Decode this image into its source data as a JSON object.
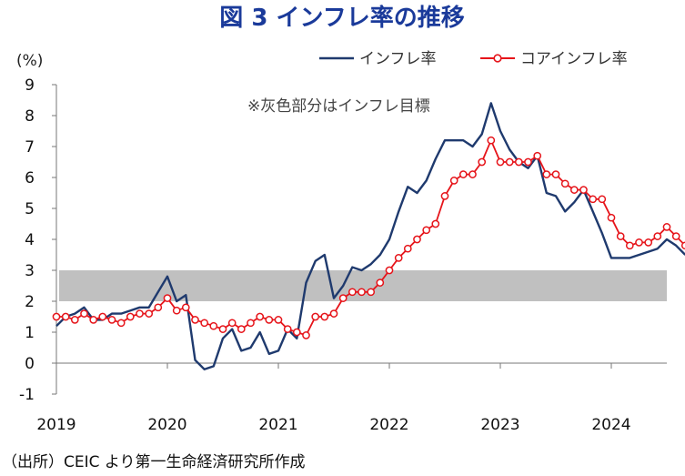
{
  "chart_data": {
    "type": "line",
    "title": "図 3 インフレ率の推移",
    "ylabel": "(%)",
    "ylim": [
      -1,
      9
    ],
    "yticks": [
      9,
      8,
      7,
      6,
      5,
      4,
      3,
      2,
      1,
      0,
      -1
    ],
    "xtick_labels": [
      "2019",
      "2020",
      "2021",
      "2022",
      "2023",
      "2024"
    ],
    "target_band": {
      "low": 2,
      "high": 3,
      "label": "※灰色部分はインフレ目標",
      "color": "#c0c0c0"
    },
    "x_start": "2019-01",
    "series": [
      {
        "name": "インフレ率",
        "color": "#1f3a6e",
        "marker": "none",
        "values": [
          1.2,
          1.5,
          1.6,
          1.8,
          1.4,
          1.4,
          1.6,
          1.6,
          1.7,
          1.8,
          1.8,
          2.3,
          2.8,
          2.0,
          2.2,
          0.1,
          -0.2,
          -0.1,
          0.8,
          1.1,
          0.4,
          0.5,
          1.0,
          0.3,
          0.4,
          1.1,
          0.8,
          2.6,
          3.3,
          3.5,
          2.1,
          2.5,
          3.1,
          3.0,
          3.2,
          3.5,
          4.0,
          4.9,
          5.7,
          5.5,
          5.9,
          6.6,
          7.2,
          7.2,
          7.2,
          7.0,
          7.4,
          8.4,
          7.5,
          6.9,
          6.5,
          6.3,
          6.7,
          5.5,
          5.4,
          4.9,
          5.2,
          5.6,
          4.9,
          4.2,
          3.4,
          3.4,
          3.4,
          3.5,
          3.6,
          3.7,
          4.0,
          3.8,
          3.5
        ]
      },
      {
        "name": "コアインフレ率",
        "color": "#e6141a",
        "marker": "circle",
        "values": [
          1.5,
          1.5,
          1.4,
          1.6,
          1.4,
          1.5,
          1.4,
          1.3,
          1.5,
          1.6,
          1.6,
          1.8,
          2.1,
          1.7,
          1.8,
          1.4,
          1.3,
          1.2,
          1.1,
          1.3,
          1.1,
          1.3,
          1.5,
          1.4,
          1.4,
          1.1,
          1.0,
          0.9,
          1.5,
          1.5,
          1.6,
          2.1,
          2.3,
          2.3,
          2.3,
          2.6,
          3.0,
          3.4,
          3.7,
          4.0,
          4.3,
          4.5,
          5.4,
          5.9,
          6.1,
          6.1,
          6.5,
          7.2,
          6.5,
          6.5,
          6.5,
          6.5,
          6.7,
          6.1,
          6.1,
          5.8,
          5.6,
          5.6,
          5.3,
          5.3,
          4.7,
          4.1,
          3.8,
          3.9,
          3.9,
          4.1,
          4.4,
          4.1,
          3.8
        ]
      }
    ]
  },
  "source_text": "（出所）CEIC より第一生命経済研究所作成"
}
